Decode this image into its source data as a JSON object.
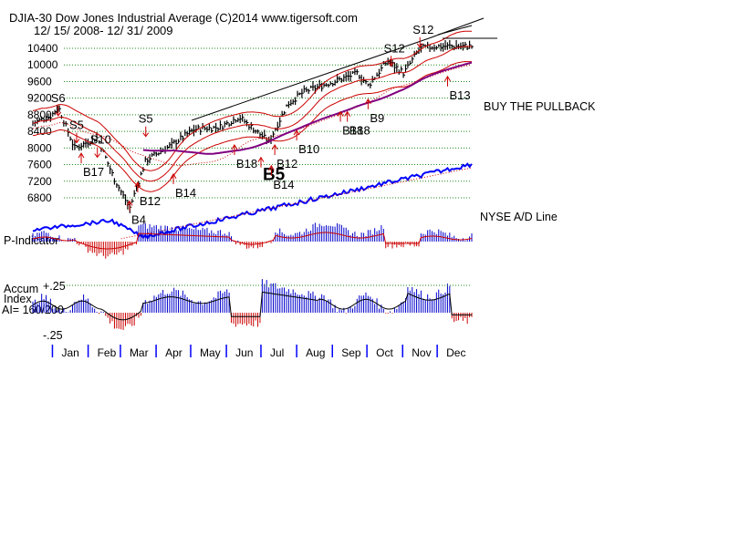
{
  "header": {
    "line1": "DJIA-30  Dow Jones Industrial Average   (C)2014 www.tigersoft.com",
    "line2": "12/ 15/ 2008- 12/ 31/ 2009"
  },
  "colors": {
    "price_bars": "#000000",
    "ma_short": "#cc0000",
    "ma_long": "#800080",
    "ad_line": "#0000ff",
    "indicator_pos": "#0000cc",
    "indicator_neg": "#cc0000",
    "grid": "#1a8a1a",
    "month_ticks": "#0000ff"
  },
  "labels": {
    "buy_note": "BUY THE PULLBACK",
    "ad_line": "NYSE A/D Line",
    "p_indicator": "P-Indicator",
    "accum_line1": "Accum",
    "accum_line2": "Index",
    "accum_line3": "AI= 160/200",
    "accum_top": "+.25",
    "accum_bottom": "-.25"
  },
  "chart_data": {
    "type": "line",
    "title": "DJIA-30  Dow Jones Industrial Average",
    "date_range": [
      "2008-12-15",
      "2009-12-31"
    ],
    "y_ticks": [
      6800,
      7200,
      7600,
      8000,
      8400,
      8800,
      9200,
      9600,
      10000,
      10400
    ],
    "ylim": [
      6400,
      10700
    ],
    "grid": true,
    "months": [
      "Jan",
      "Feb",
      "Mar",
      "Apr",
      "May",
      "Jun",
      "Jul",
      "Aug",
      "Sep",
      "Oct",
      "Nov",
      "Dec"
    ],
    "price_close": {
      "dates": [
        "2008-12-15",
        "2008-12-31",
        "2009-01-06",
        "2009-01-20",
        "2009-02-09",
        "2009-02-23",
        "2009-03-09",
        "2009-03-23",
        "2009-04-13",
        "2009-05-04",
        "2009-05-26",
        "2009-06-12",
        "2009-07-08",
        "2009-07-24",
        "2009-08-07",
        "2009-08-28",
        "2009-09-23",
        "2009-10-02",
        "2009-10-19",
        "2009-11-02",
        "2009-11-16",
        "2009-12-01",
        "2009-12-31"
      ],
      "values": [
        8600,
        8780,
        9000,
        8000,
        8250,
        7300,
        6550,
        7700,
        8050,
        8450,
        8500,
        8750,
        8150,
        9050,
        9350,
        9550,
        9800,
        9500,
        10100,
        9800,
        10400,
        10450,
        10450
      ]
    },
    "signals": [
      {
        "label": "S6",
        "date": "2009-01-06",
        "value": 9150
      },
      {
        "label": "S5",
        "date": "2009-01-22",
        "value": 8500
      },
      {
        "label": "S10",
        "date": "2009-02-09",
        "value": 8150
      },
      {
        "label": "S5",
        "date": "2009-03-23",
        "value": 8650
      },
      {
        "label": "B17",
        "date": "2009-01-26",
        "value": 7500
      },
      {
        "label": "B4",
        "date": "2009-03-09",
        "value": 6350
      },
      {
        "label": "B12",
        "date": "2009-03-16",
        "value": 6800
      },
      {
        "label": "B14",
        "date": "2009-04-16",
        "value": 7000
      },
      {
        "label": "B18",
        "date": "2009-06-08",
        "value": 7700
      },
      {
        "label": "B5",
        "date": "2009-07-01",
        "value": 7400
      },
      {
        "label": "B14",
        "date": "2009-07-10",
        "value": 7200
      },
      {
        "label": "B12",
        "date": "2009-07-13",
        "value": 7700
      },
      {
        "label": "B10",
        "date": "2009-08-01",
        "value": 8050
      },
      {
        "label": "B18",
        "date": "2009-09-08",
        "value": 8500
      },
      {
        "label": "B18",
        "date": "2009-09-14",
        "value": 8500
      },
      {
        "label": "B9",
        "date": "2009-10-02",
        "value": 8800
      },
      {
        "label": "S12",
        "date": "2009-10-22",
        "value": 10350
      },
      {
        "label": "S12",
        "date": "2009-11-16",
        "value": 10800
      },
      {
        "label": "B13",
        "date": "2009-12-10",
        "value": 9350
      }
    ],
    "legend": [
      {
        "name": "NYSE A/D Line"
      },
      {
        "name": "P-Indicator"
      },
      {
        "name": "Accum Index"
      }
    ],
    "accum_index": {
      "ylim": [
        -0.25,
        0.25
      ],
      "reading": "AI= 160/200"
    }
  }
}
